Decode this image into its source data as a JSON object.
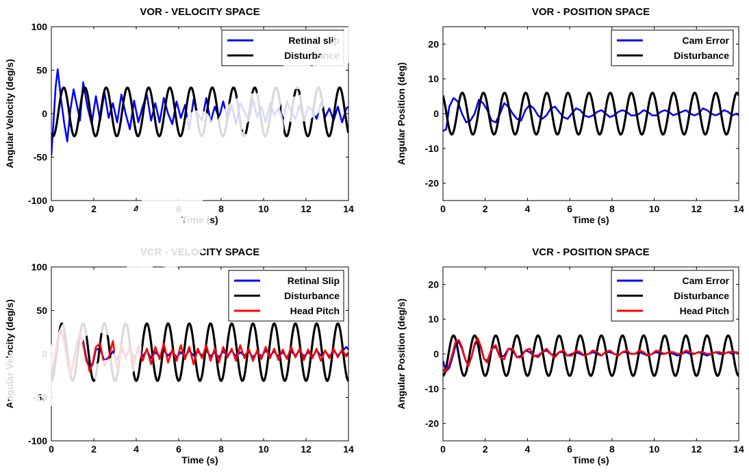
{
  "chart_data": [
    {
      "type": "line",
      "title": "VOR - VELOCITY SPACE",
      "xlabel": "Time (s)",
      "ylabel": "Angular Velocity (deg/s)",
      "xlim": [
        0,
        14
      ],
      "ylim": [
        -100,
        100
      ],
      "xticks": [
        0,
        2,
        4,
        6,
        8,
        10,
        12,
        14
      ],
      "yticks": [
        -100,
        -50,
        0,
        50,
        100
      ],
      "grid": false,
      "legend": "top-right",
      "series": [
        {
          "name": "Retinal slip",
          "color": "#0000ff",
          "x": [
            0,
            0.1,
            0.2,
            0.3,
            0.45,
            0.6,
            0.75,
            0.9,
            1.05,
            1.2,
            1.35,
            1.5,
            1.7,
            1.9,
            2.1,
            2.3,
            2.5,
            2.7,
            2.9,
            3.1,
            3.3,
            3.5,
            3.7,
            3.9,
            4.1,
            4.3,
            4.5,
            4.7,
            4.9,
            5.1,
            5.3,
            5.5,
            5.7,
            5.9,
            6.1,
            6.3,
            6.5,
            6.7,
            6.9,
            7.1,
            7.3,
            7.5,
            7.7,
            7.9,
            8.1,
            8.3,
            8.5,
            8.7,
            8.9,
            9.1,
            9.3,
            9.5,
            9.7,
            9.9,
            10.1,
            10.3,
            10.5,
            10.7,
            10.9,
            11.1,
            11.3,
            11.5,
            11.7,
            11.9,
            12.1,
            12.3,
            12.5,
            12.7,
            12.9,
            13.1,
            13.3,
            13.5,
            13.7,
            13.9,
            14
          ],
          "y": [
            -48,
            -10,
            30,
            51,
            18,
            -10,
            -32,
            5,
            28,
            10,
            -8,
            36,
            8,
            -12,
            20,
            -8,
            25,
            -5,
            12,
            -10,
            22,
            0,
            -18,
            15,
            -10,
            8,
            22,
            -8,
            12,
            -10,
            18,
            0,
            -12,
            14,
            -5,
            10,
            -18,
            16,
            0,
            -8,
            18,
            -10,
            8,
            -5,
            14,
            -6,
            10,
            -12,
            12,
            2,
            -8,
            16,
            -4,
            8,
            -10,
            12,
            -2,
            6,
            -8,
            14,
            2,
            -6,
            10,
            -8,
            8,
            4,
            -6,
            12,
            -4,
            6,
            -8,
            8,
            -10,
            6,
            8
          ]
        },
        {
          "name": "Disturbance",
          "color": "#000000",
          "amplitude": 28,
          "offset": 2,
          "frequency_hz": 1,
          "phase_deg": -120,
          "x_range": [
            0,
            14
          ],
          "samples": 561
        }
      ]
    },
    {
      "type": "line",
      "title": "VOR - POSITION SPACE",
      "xlabel": "Time (s)",
      "ylabel": "Angular Position (deg)",
      "xlim": [
        0,
        14
      ],
      "ylim": [
        -25,
        25
      ],
      "xticks": [
        0,
        2,
        4,
        6,
        8,
        10,
        12,
        14
      ],
      "yticks": [
        -20,
        -10,
        0,
        10,
        20
      ],
      "grid": false,
      "legend": "top-right",
      "series": [
        {
          "name": "Cam Error",
          "color": "#0000ff",
          "x": [
            0,
            0.15,
            0.3,
            0.5,
            0.7,
            0.9,
            1.1,
            1.3,
            1.5,
            1.7,
            1.9,
            2.1,
            2.3,
            2.5,
            2.7,
            2.9,
            3.1,
            3.3,
            3.5,
            3.7,
            3.9,
            4.1,
            4.3,
            4.5,
            4.7,
            4.9,
            5.1,
            5.3,
            5.5,
            5.7,
            5.9,
            6.1,
            6.3,
            6.5,
            6.7,
            6.9,
            7.1,
            7.3,
            7.5,
            7.7,
            7.9,
            8.1,
            8.3,
            8.5,
            8.7,
            8.9,
            9.1,
            9.3,
            9.5,
            9.7,
            9.9,
            10.1,
            10.3,
            10.5,
            10.7,
            10.9,
            11.1,
            11.3,
            11.5,
            11.7,
            11.9,
            12.1,
            12.3,
            12.5,
            12.7,
            12.9,
            13.1,
            13.3,
            13.5,
            13.7,
            13.9,
            14
          ],
          "y": [
            -5,
            -4.5,
            2,
            4.5,
            3.5,
            0,
            -2.5,
            -2,
            0,
            4,
            3,
            1,
            -2,
            -2.5,
            0,
            3,
            2,
            0,
            -1.5,
            -2,
            1,
            2.5,
            1.5,
            -0.5,
            -1.5,
            -0.5,
            1.5,
            2,
            0.5,
            -1,
            -1.5,
            0,
            1.5,
            1,
            -0.5,
            -1,
            -0.5,
            0.5,
            1,
            0,
            -1,
            -0.5,
            0.5,
            1,
            0.5,
            -0.5,
            -0.5,
            0,
            1,
            0.5,
            -0.5,
            -0.5,
            0.5,
            1,
            0.5,
            -0.5,
            0,
            0.5,
            1,
            0,
            -0.5,
            0,
            1.5,
            1,
            0,
            -0.5,
            0,
            1,
            0.5,
            -0.5,
            0,
            -0.5
          ]
        },
        {
          "name": "Disturbance",
          "color": "#000000",
          "amplitude": 6,
          "offset": 0,
          "frequency_hz": 1,
          "phase_deg": 120,
          "x_range": [
            0,
            14
          ],
          "samples": 561
        }
      ]
    },
    {
      "type": "line",
      "title": "VCR - VELOCITY SPACE",
      "xlabel": "Time (s)",
      "ylabel": "Angular Velocity (deg/s)",
      "xlim": [
        0,
        14
      ],
      "ylim": [
        -100,
        100
      ],
      "xticks": [
        0,
        2,
        4,
        6,
        8,
        10,
        12,
        14
      ],
      "yticks": [
        -100,
        -50,
        0,
        50,
        100
      ],
      "grid": false,
      "legend": "top-right",
      "series": [
        {
          "name": "Retinal Slip",
          "color": "#0000ff",
          "x": [
            0,
            0.15,
            0.3,
            0.45,
            0.6,
            0.75,
            0.9,
            1.05,
            1.2,
            1.35,
            1.5,
            1.65,
            1.8,
            1.95,
            2.1,
            2.3,
            2.5,
            2.7,
            2.9,
            3.1,
            3.3,
            3.5,
            3.7,
            3.9,
            4.1,
            4.3,
            4.5,
            4.7,
            4.9,
            5.1,
            5.3,
            5.5,
            5.7,
            5.9,
            6.1,
            6.3,
            6.5,
            6.7,
            6.9,
            7.1,
            7.3,
            7.5,
            7.7,
            7.9,
            8.1,
            8.3,
            8.5,
            8.7,
            8.9,
            9.1,
            9.3,
            9.5,
            9.7,
            9.9,
            10.1,
            10.3,
            10.5,
            10.7,
            10.9,
            11.1,
            11.3,
            11.5,
            11.7,
            11.9,
            12.1,
            12.3,
            12.5,
            12.7,
            12.9,
            13.1,
            13.3,
            13.5,
            13.7,
            13.9,
            14
          ],
          "y": [
            -28,
            -10,
            15,
            28,
            18,
            -5,
            -22,
            -10,
            10,
            22,
            15,
            -5,
            -18,
            -12,
            5,
            6,
            -8,
            -4,
            3,
            -6,
            4,
            -2,
            5,
            -4,
            3,
            -3,
            4,
            -5,
            2,
            -3,
            4,
            -2,
            3,
            -4,
            2,
            -3,
            4,
            -2,
            3,
            -2,
            4,
            -3,
            2,
            -4,
            3,
            -2,
            4,
            -3,
            2,
            -2,
            3,
            -4,
            2,
            -3,
            4,
            -2,
            3,
            -3,
            2,
            -4,
            3,
            -2,
            4,
            -3,
            2,
            -3,
            4,
            -2,
            3,
            -3,
            4,
            -2,
            3,
            8,
            5
          ]
        },
        {
          "name": "Disturbance",
          "color": "#000000",
          "amplitude": 33,
          "offset": 2,
          "frequency_hz": 1,
          "phase_deg": -90,
          "x_range": [
            0,
            14
          ],
          "samples": 561
        },
        {
          "name": "Head Pitch",
          "color": "#ff0000",
          "x": [
            0,
            0.15,
            0.3,
            0.45,
            0.6,
            0.75,
            0.9,
            1.05,
            1.2,
            1.35,
            1.5,
            1.65,
            1.8,
            1.95,
            2.1,
            2.3,
            2.5,
            2.7,
            2.9,
            3.1,
            3.3,
            3.5,
            3.7,
            3.9,
            4.1,
            4.3,
            4.5,
            4.7,
            4.9,
            5.1,
            5.3,
            5.5,
            5.7,
            5.9,
            6.1,
            6.3,
            6.5,
            6.7,
            6.9,
            7.1,
            7.3,
            7.5,
            7.7,
            7.9,
            8.1,
            8.3,
            8.5,
            8.7,
            8.9,
            9.1,
            9.3,
            9.5,
            9.7,
            9.9,
            10.1,
            10.3,
            10.5,
            10.7,
            10.9,
            11.1,
            11.3,
            11.5,
            11.7,
            11.9,
            12.1,
            12.3,
            12.5,
            12.7,
            12.9,
            13.1,
            13.3,
            13.5,
            13.7,
            13.9,
            14
          ],
          "y": [
            -22,
            -5,
            18,
            26,
            15,
            -8,
            -25,
            -8,
            12,
            25,
            12,
            -8,
            -20,
            -10,
            8,
            12,
            -14,
            -5,
            15,
            -18,
            10,
            -6,
            8,
            -12,
            10,
            -8,
            6,
            -12,
            8,
            -6,
            12,
            -10,
            5,
            -8,
            10,
            -6,
            8,
            -12,
            6,
            -5,
            10,
            -8,
            6,
            -10,
            8,
            -4,
            6,
            -8,
            10,
            -5,
            6,
            -8,
            4,
            -6,
            8,
            -5,
            6,
            -7,
            5,
            -6,
            8,
            -4,
            6,
            -7,
            5,
            -5,
            6,
            -8,
            4,
            -5,
            6,
            -4,
            5,
            -3,
            2
          ]
        }
      ]
    },
    {
      "type": "line",
      "title": "VCR - POSITION SPACE",
      "xlabel": "Time (s)",
      "ylabel": "Angular Position (deg/s)",
      "xlim": [
        0,
        14
      ],
      "ylim": [
        -25,
        25
      ],
      "xticks": [
        0,
        2,
        4,
        6,
        8,
        10,
        12,
        14
      ],
      "yticks": [
        -20,
        -10,
        0,
        10,
        20
      ],
      "grid": false,
      "legend": "top-right",
      "series": [
        {
          "name": "Cam Error",
          "color": "#0000ff",
          "x": [
            0,
            0.15,
            0.3,
            0.45,
            0.6,
            0.75,
            0.9,
            1.05,
            1.2,
            1.35,
            1.5,
            1.65,
            1.8,
            1.95,
            2.1,
            2.3,
            2.5,
            2.7,
            2.9,
            3.1,
            3.3,
            3.5,
            3.7,
            3.9,
            4.1,
            4.3,
            4.5,
            4.7,
            4.9,
            5.1,
            5.3,
            5.5,
            5.7,
            5.9,
            6.1,
            6.3,
            6.5,
            6.7,
            6.9,
            7.1,
            7.3,
            7.5,
            7.7,
            7.9,
            8.1,
            8.3,
            8.5,
            8.7,
            8.9,
            9.1,
            9.3,
            9.5,
            9.7,
            9.9,
            10.1,
            10.3,
            10.5,
            10.7,
            10.9,
            11.1,
            11.3,
            11.5,
            11.7,
            11.9,
            12.1,
            12.3,
            12.5,
            12.7,
            12.9,
            13.1,
            13.3,
            13.5,
            13.7,
            13.9,
            14
          ],
          "y": [
            -2,
            -5,
            -4,
            -1,
            2.5,
            3.5,
            1.5,
            -1.5,
            -3,
            -1,
            2.5,
            4,
            1.5,
            -1.5,
            -2,
            1.5,
            2,
            -1,
            -0.5,
            1.5,
            1,
            -1,
            -0.5,
            1,
            0.5,
            -0.5,
            -0.5,
            0.5,
            1,
            0,
            -0.5,
            0.5,
            0.5,
            -0.5,
            0,
            0.5,
            0,
            -0.5,
            0,
            0.5,
            0,
            -0.5,
            0.5,
            0.5,
            0,
            -0.5,
            0.5,
            0.5,
            0,
            0,
            0.5,
            0,
            -0.5,
            0,
            0.5,
            0,
            0,
            0.5,
            0,
            -0.5,
            0,
            0.5,
            0,
            0,
            0.5,
            0,
            -0.5,
            0,
            0.5,
            0,
            0,
            0.5,
            0,
            0.5,
            0
          ]
        },
        {
          "name": "Disturbance",
          "color": "#000000",
          "amplitude": 5.8,
          "offset": -0.5,
          "frequency_hz": 1,
          "phase_deg": -90,
          "x_range": [
            0,
            14
          ],
          "samples": 561
        },
        {
          "name": "Head Pitch",
          "color": "#ff0000",
          "x": [
            0,
            0.15,
            0.3,
            0.45,
            0.6,
            0.75,
            0.9,
            1.05,
            1.2,
            1.35,
            1.5,
            1.65,
            1.8,
            1.95,
            2.1,
            2.3,
            2.5,
            2.7,
            2.9,
            3.1,
            3.3,
            3.5,
            3.7,
            3.9,
            4.1,
            4.3,
            4.5,
            4.7,
            4.9,
            5.1,
            5.3,
            5.5,
            5.7,
            5.9,
            6.1,
            6.3,
            6.5,
            6.7,
            6.9,
            7.1,
            7.3,
            7.5,
            7.7,
            7.9,
            8.1,
            8.3,
            8.5,
            8.7,
            8.9,
            9.1,
            9.3,
            9.5,
            9.7,
            9.9,
            10.1,
            10.3,
            10.5,
            10.7,
            10.9,
            11.1,
            11.3,
            11.5,
            11.7,
            11.9,
            12.1,
            12.3,
            12.5,
            12.7,
            12.9,
            13.1,
            13.3,
            13.5,
            13.7,
            13.9,
            14
          ],
          "y": [
            -4.5,
            -5,
            -3,
            0,
            3.5,
            4,
            2,
            -1.5,
            -3.5,
            -1,
            3,
            4.5,
            2,
            -1.5,
            -2.5,
            1.5,
            2.5,
            -1,
            -1.5,
            1.5,
            1.5,
            -1,
            -1,
            1,
            1.5,
            -0.5,
            -1,
            0.5,
            1.5,
            0,
            -1,
            0.5,
            1,
            -0.5,
            -0.5,
            1,
            0.5,
            -0.5,
            0,
            1,
            0.5,
            -0.5,
            0.5,
            1,
            0,
            -0.5,
            0.5,
            1,
            0,
            0,
            1,
            0.5,
            -0.5,
            0,
            1,
            0.5,
            0,
            0.5,
            0.5,
            0,
            0,
            1,
            0.5,
            0,
            0.5,
            0.5,
            0,
            0,
            0.5,
            0.5,
            0,
            0.5,
            0.5,
            0.5,
            0
          ]
        }
      ]
    }
  ]
}
